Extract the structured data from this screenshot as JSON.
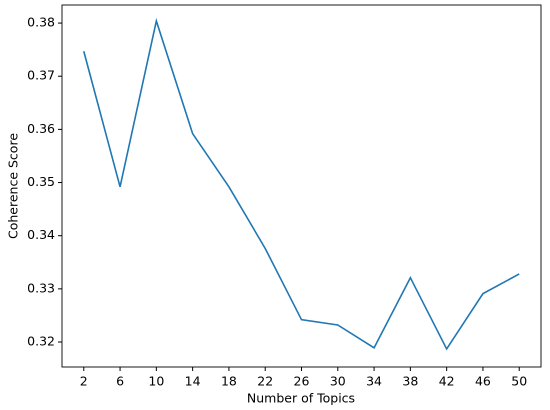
{
  "chart_data": {
    "type": "line",
    "xlabel": "Number of Topics",
    "ylabel": "Coherence Score",
    "x": [
      2,
      6,
      10,
      14,
      18,
      22,
      26,
      30,
      34,
      38,
      42,
      46,
      50
    ],
    "series": [
      {
        "color": "#1f77b4",
        "values": [
          0.3747,
          0.3492,
          0.3804,
          0.3592,
          0.3492,
          0.3376,
          0.3242,
          0.3232,
          0.3189,
          0.3321,
          0.3187,
          0.3291,
          0.3328
        ]
      }
    ],
    "xlim": [
      -0.4,
      52.4
    ],
    "ylim": [
      0.3153,
      0.3834
    ],
    "xticks": [
      2,
      6,
      10,
      14,
      18,
      22,
      26,
      30,
      34,
      38,
      42,
      46,
      50
    ],
    "yticks": [
      0.32,
      0.33,
      0.34,
      0.35,
      0.36,
      0.37,
      0.38
    ]
  }
}
